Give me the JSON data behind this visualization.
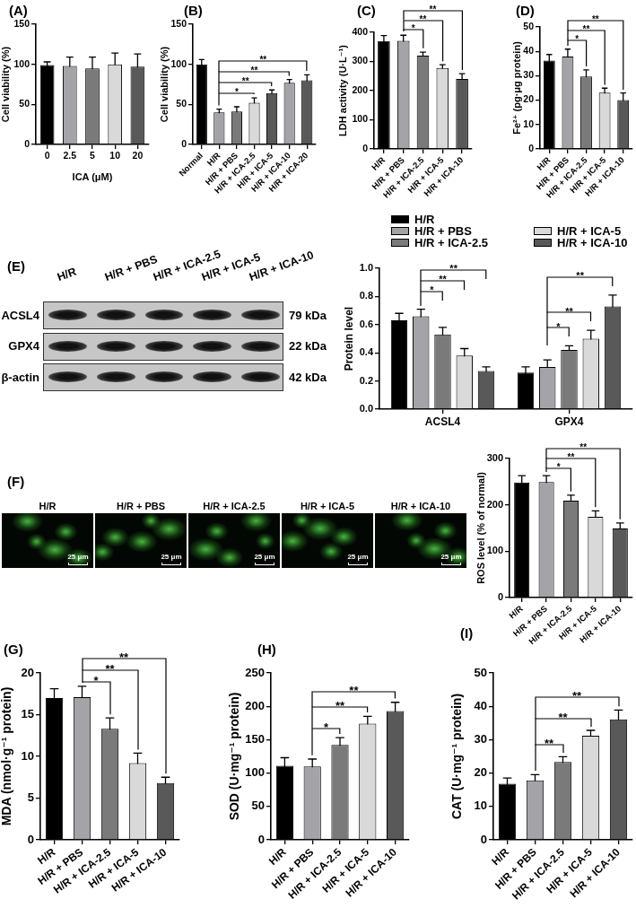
{
  "chart_data": [
    {
      "type": "bar",
      "title": "(A)",
      "xlabel": "ICA (μM)",
      "ylabel": "Cell viability (%)",
      "categories": [
        "0",
        "2.5",
        "5",
        "10",
        "20"
      ],
      "values": [
        99,
        98,
        95,
        100,
        97
      ],
      "errors": [
        4,
        11,
        14,
        14,
        16
      ],
      "colors": [
        "#000000",
        "#a3a3a8",
        "#7a7a7a",
        "#d9d9d9",
        "#595959"
      ],
      "ylim": [
        0,
        150
      ],
      "yticks": [
        0,
        50,
        100,
        150
      ]
    },
    {
      "type": "bar",
      "title": "(B)",
      "ylabel": "Cell viability (%)",
      "categories": [
        "Normal",
        "H/R",
        "H/R + PBS",
        "H/R + ICA-2.5",
        "H/R + ICA-5",
        "H/R + ICA-10",
        "H/R + ICA-20"
      ],
      "values": [
        100,
        40,
        41,
        52,
        64,
        77,
        80
      ],
      "errors": [
        6,
        4,
        6,
        6,
        4,
        4,
        7
      ],
      "colors": [
        "#000000",
        "#a3a3a8",
        "#7a7a7a",
        "#d9d9d9",
        "#595959",
        "#a3a3a8",
        "#595959"
      ],
      "ylim": [
        0,
        150
      ],
      "yticks": [
        0,
        50,
        100,
        150
      ],
      "annotations": [
        "*",
        "**",
        "**",
        "**"
      ]
    },
    {
      "type": "bar",
      "title": "(C)",
      "ylabel": "LDH activity (U·L⁻¹)",
      "categories": [
        "H/R",
        "H/R + PBS",
        "H/R + ICA-2.5",
        "H/R + ICA-5",
        "H/R + ICA-10"
      ],
      "values": [
        370,
        371,
        320,
        278,
        240
      ],
      "errors": [
        19,
        19,
        12,
        11,
        18
      ],
      "colors": [
        "#000000",
        "#a3a3a8",
        "#7a7a7a",
        "#d9d9d9",
        "#595959"
      ],
      "ylim": [
        0,
        400
      ],
      "yticks": [
        0,
        100,
        200,
        300,
        400
      ],
      "annotations": [
        "*",
        "**",
        "**"
      ]
    },
    {
      "type": "bar",
      "title": "(D)",
      "ylabel": "Fe²⁺ (pg·μg protein)",
      "categories": [
        "H/R",
        "H/R + PBS",
        "H/R + ICA-2.5",
        "H/R + ICA-5",
        "H/R + ICA-10"
      ],
      "values": [
        36.2,
        37.9,
        29.7,
        23.1,
        20.0
      ],
      "errors": [
        2.5,
        3.0,
        2.7,
        1.8,
        2.9
      ],
      "colors": [
        "#000000",
        "#a3a3a8",
        "#7a7a7a",
        "#d9d9d9",
        "#595959"
      ],
      "ylim": [
        0,
        50
      ],
      "yticks": [
        0,
        10,
        20,
        30,
        40,
        50
      ],
      "annotations": [
        "*",
        "**",
        "**"
      ]
    },
    {
      "type": "other",
      "title": "(E)",
      "categories": [
        "H/R",
        "H/R + PBS",
        "H/R + ICA-2.5",
        "H/R + ICA-5",
        "H/R + ICA-10"
      ],
      "y_categories": [
        "ACSL4",
        "GPX4",
        "β-actin"
      ],
      "y2_categories": [
        "79 kDa",
        "22 kDa",
        "42 kDa"
      ]
    },
    {
      "type": "bar",
      "ylabel": "Protein level",
      "categories": [
        "ACSL4",
        "GPX4"
      ],
      "series": [
        {
          "name": "H/R",
          "color": "#000000",
          "values": [
            0.63,
            0.26
          ],
          "errors": [
            0.05,
            0.04
          ]
        },
        {
          "name": "H/R + PBS",
          "color": "#a3a3a8",
          "values": [
            0.66,
            0.3
          ],
          "errors": [
            0.05,
            0.05
          ]
        },
        {
          "name": "H/R + ICA-2.5",
          "color": "#7a7a7a",
          "values": [
            0.53,
            0.42
          ],
          "errors": [
            0.05,
            0.03
          ]
        },
        {
          "name": "H/R + ICA-5",
          "color": "#d9d9d9",
          "values": [
            0.38,
            0.5
          ],
          "errors": [
            0.05,
            0.06
          ]
        },
        {
          "name": "H/R + ICA-10",
          "color": "#595959",
          "values": [
            0.27,
            0.73
          ],
          "errors": [
            0.03,
            0.08
          ]
        }
      ],
      "ylim": [
        0,
        1
      ],
      "yticks": [
        {
          "value": 0,
          "label": "0.0"
        },
        0.2,
        0.4,
        0.6,
        0.8,
        {
          "value": 1,
          "label": "1.0"
        }
      ],
      "legend": "top",
      "annotations": [
        "*",
        "**",
        "**",
        "*",
        "**",
        "**"
      ]
    },
    {
      "type": "other",
      "title": "(F)",
      "categories": [
        "H/R",
        "H/R + PBS",
        "H/R + ICA-2.5",
        "H/R + ICA-5",
        "H/R + ICA-10"
      ],
      "annotations": [
        "25 μm",
        "25 μm",
        "25 μm",
        "25 μm",
        "25 μm"
      ]
    },
    {
      "type": "bar",
      "ylabel": "ROS level (% of normal)",
      "categories": [
        "H/R",
        "H/R + PBS",
        "H/R + ICA-2.5",
        "H/R + ICA-5",
        "H/R + ICA-10"
      ],
      "values": [
        248,
        249,
        209,
        174,
        149
      ],
      "errors": [
        15,
        14,
        12,
        13,
        12
      ],
      "colors": [
        "#000000",
        "#a3a3a8",
        "#7a7a7a",
        "#d9d9d9",
        "#595959"
      ],
      "ylim": [
        0,
        300
      ],
      "yticks": [
        0,
        100,
        200,
        300
      ],
      "annotations": [
        "*",
        "**",
        "**"
      ]
    },
    {
      "type": "bar",
      "title": "(G)",
      "ylabel": "MDA (nmol·g⁻¹ protein)",
      "categories": [
        "H/R",
        "H/R + PBS",
        "H/R + ICA-2.5",
        "H/R + ICA-5",
        "H/R + ICA-10"
      ],
      "values": [
        17.0,
        17.1,
        13.3,
        9.2,
        6.8
      ],
      "errors": [
        1.1,
        1.3,
        1.3,
        1.2,
        0.7
      ],
      "colors": [
        "#000000",
        "#a3a3a8",
        "#7a7a7a",
        "#d9d9d9",
        "#595959"
      ],
      "ylim": [
        0,
        20
      ],
      "yticks": [
        0,
        5,
        10,
        15,
        20
      ],
      "annotations": [
        "*",
        "**",
        "**"
      ]
    },
    {
      "type": "bar",
      "title": "(H)",
      "ylabel": "SOD (U·mg⁻¹ protein)",
      "categories": [
        "H/R",
        "H/R + PBS",
        "H/R + ICA-2.5",
        "H/R + ICA-5",
        "H/R + ICA-10"
      ],
      "values": [
        111,
        110,
        142,
        174,
        193
      ],
      "errors": [
        12,
        11,
        11,
        11,
        13
      ],
      "colors": [
        "#000000",
        "#a3a3a8",
        "#7a7a7a",
        "#d9d9d9",
        "#595959"
      ],
      "ylim": [
        0,
        250
      ],
      "yticks": [
        0,
        50,
        100,
        150,
        200,
        250
      ],
      "annotations": [
        "*",
        "**",
        "**"
      ]
    },
    {
      "type": "bar",
      "title": "(I)",
      "ylabel": "CAT (U·mg⁻¹ protein)",
      "categories": [
        "H/R",
        "H/R + PBS",
        "H/R + ICA-2.5",
        "H/R + ICA-5",
        "H/R + ICA-10"
      ],
      "values": [
        16.8,
        17.8,
        23.3,
        31.2,
        36.1
      ],
      "errors": [
        1.7,
        1.7,
        1.6,
        1.6,
        2.8
      ],
      "colors": [
        "#000000",
        "#a3a3a8",
        "#7a7a7a",
        "#d9d9d9",
        "#595959"
      ],
      "ylim": [
        0,
        50
      ],
      "yticks": [
        0,
        10,
        20,
        30,
        40,
        50
      ],
      "annotations": [
        "**",
        "**",
        "**"
      ]
    }
  ]
}
